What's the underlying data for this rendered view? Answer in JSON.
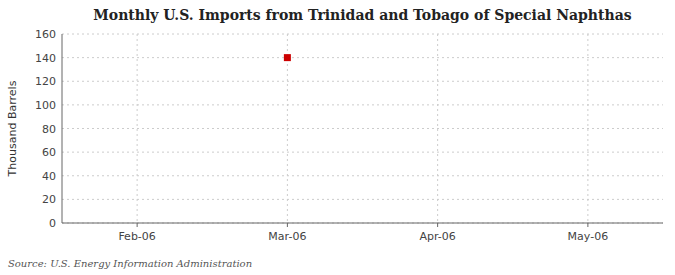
{
  "chart_data": {
    "type": "scatter",
    "title": "Monthly U.S. Imports from Trinidad and Tobago of Special Naphthas",
    "ylabel": "Thousand Barrels",
    "source": "Source: U.S. Energy Information Administration",
    "categories": [
      "Feb-06",
      "Mar-06",
      "Apr-06",
      "May-06"
    ],
    "values": [
      null,
      140,
      null,
      null
    ],
    "color": "#cc0000",
    "marker": "square",
    "ylim": [
      0,
      160
    ],
    "yticks": [
      0,
      20,
      40,
      60,
      80,
      100,
      120,
      140,
      160
    ],
    "grid": true
  }
}
